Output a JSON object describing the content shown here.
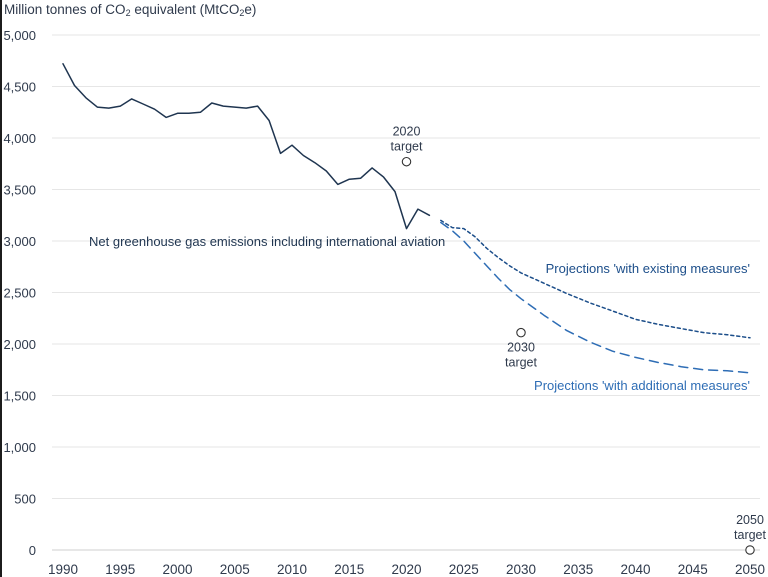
{
  "chart_data": {
    "type": "line",
    "ylabel_parts": [
      "Million tonnes of CO",
      "2",
      " equivalent (MtCO",
      "2",
      "e)"
    ],
    "xlabel": "",
    "xlim": [
      1989,
      2050.5
    ],
    "ylim": [
      0,
      5000
    ],
    "grid": true,
    "x_ticks": [
      1990,
      1995,
      2000,
      2005,
      2010,
      2015,
      2020,
      2025,
      2030,
      2035,
      2040,
      2045,
      2050
    ],
    "y_ticks": [
      0,
      500,
      1000,
      1500,
      2000,
      2500,
      3000,
      3500,
      4000,
      4500,
      5000
    ],
    "y_tick_labels": [
      "0",
      "500",
      "1,000",
      "1,500",
      "2,000",
      "2,500",
      "3,000",
      "3,500",
      "4,000",
      "4,500",
      "5,000"
    ],
    "series": [
      {
        "name": "Net greenhouse gas emissions including international aviation",
        "color": "#1f3550",
        "style": "solid",
        "x": [
          1990,
          1991,
          1992,
          1993,
          1994,
          1995,
          1996,
          1997,
          1998,
          1999,
          2000,
          2001,
          2002,
          2003,
          2004,
          2005,
          2006,
          2007,
          2008,
          2009,
          2010,
          2011,
          2012,
          2013,
          2014,
          2015,
          2016,
          2017,
          2018,
          2019,
          2020,
          2021,
          2022
        ],
        "y": [
          4720,
          4510,
          4390,
          4300,
          4290,
          4310,
          4380,
          4330,
          4280,
          4200,
          4240,
          4240,
          4250,
          4340,
          4310,
          4300,
          4290,
          4310,
          4170,
          3850,
          3930,
          3830,
          3760,
          3680,
          3550,
          3600,
          3610,
          3710,
          3620,
          3480,
          3120,
          3310,
          3250
        ]
      },
      {
        "name": "Projections 'with existing measures'",
        "color": "#1c4e8a",
        "style": "dotted",
        "x": [
          2023,
          2024,
          2025,
          2026,
          2027,
          2028,
          2029,
          2030,
          2032,
          2034,
          2036,
          2038,
          2040,
          2042,
          2044,
          2046,
          2048,
          2050
        ],
        "y": [
          3200,
          3130,
          3120,
          3040,
          2930,
          2840,
          2760,
          2690,
          2590,
          2490,
          2400,
          2320,
          2240,
          2190,
          2150,
          2110,
          2090,
          2060
        ]
      },
      {
        "name": "Projections 'with additional measures'",
        "color": "#2e6db5",
        "style": "dashed",
        "x": [
          2023,
          2024,
          2025,
          2026,
          2027,
          2028,
          2029,
          2030,
          2032,
          2034,
          2036,
          2038,
          2040,
          2042,
          2044,
          2046,
          2048,
          2050
        ],
        "y": [
          3180,
          3100,
          3000,
          2880,
          2760,
          2640,
          2530,
          2440,
          2280,
          2130,
          2020,
          1930,
          1870,
          1820,
          1780,
          1750,
          1740,
          1720
        ]
      }
    ],
    "targets": [
      {
        "year": 2020,
        "value": 3770,
        "label_lines": [
          "2020",
          "target"
        ]
      },
      {
        "year": 2030,
        "value": 2110,
        "label_lines": [
          "2030",
          "target"
        ]
      },
      {
        "year": 2050,
        "value": 0,
        "label_lines": [
          "2050",
          "target"
        ]
      }
    ]
  },
  "colors": {
    "axis_text": "#2f3a4c",
    "grid": "#e6e6e6",
    "target_marker": "#333333"
  }
}
